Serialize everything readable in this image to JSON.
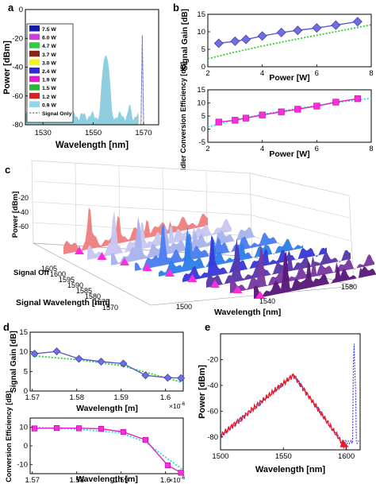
{
  "panels": {
    "a": "a",
    "b": "b",
    "c": "c",
    "d": "d",
    "e": "e"
  },
  "colors": {
    "legend": [
      "#1a1aa8",
      "#d03adf",
      "#2fcc3c",
      "#8a2418",
      "#f4f418",
      "#2b2bd8",
      "#d91fd0",
      "#2ab832",
      "#e02020",
      "#8cd7ea"
    ],
    "blue_marker": "#6f6fe0",
    "magenta_marker": "#ff2bdc",
    "green_dot": "#2bd02b",
    "cyan_dot": "#2adada",
    "red_line": "#e41a2a"
  },
  "chart_data": [
    {
      "id": "a",
      "type": "line",
      "xlabel": "Wavelength [nm]",
      "ylabel": "Power [dBm]",
      "xlim": [
        1523,
        1576
      ],
      "ylim": [
        -80,
        0
      ],
      "xticks": [
        1530,
        1550,
        1570
      ],
      "yticks": [
        -80,
        -60,
        -40,
        -20,
        0
      ],
      "legend": [
        "7.5 W",
        "6.0 W",
        "4.7 W",
        "3.7 W",
        "3.0 W",
        "2.4 W",
        "1.9 W",
        "1.5 W",
        "1.2 W",
        "0.9 W",
        "Signal Only"
      ],
      "signal_peak": {
        "x": 1569.5,
        "y": -18
      },
      "gain_peaks": [
        {
          "x": 1555.0,
          "y": -32
        },
        {
          "x": 1541.0,
          "y": -70
        },
        {
          "x": 1564.5,
          "y": -66
        },
        {
          "x": 1527.0,
          "y": -70
        }
      ]
    },
    {
      "id": "b_top",
      "type": "line",
      "xlabel": "Power [W]",
      "ylabel": "Signal Gain [dB]",
      "xlim": [
        2,
        8
      ],
      "ylim": [
        0,
        15
      ],
      "xticks": [
        2,
        4,
        6,
        8
      ],
      "yticks": [
        0,
        5,
        10,
        15
      ],
      "series": [
        {
          "values_x": [
            2.4,
            3.0,
            3.4,
            4.0,
            4.7,
            5.3,
            6.0,
            6.7,
            7.5
          ],
          "values_y": [
            6.7,
            7.3,
            7.8,
            8.8,
            9.8,
            10.4,
            11.1,
            11.9,
            12.9
          ]
        },
        {
          "values_x": [
            2.0,
            3.0,
            4.0,
            5.0,
            6.0,
            7.0,
            8.0
          ],
          "values_y": [
            2.3,
            4.2,
            5.9,
            7.5,
            9.0,
            10.5,
            12.0
          ]
        }
      ]
    },
    {
      "id": "b_bottom",
      "type": "line",
      "xlabel": "Power [W]",
      "ylabel": "Idler Conversion Efficiency [dB]",
      "xlim": [
        2,
        8
      ],
      "ylim": [
        -5,
        15
      ],
      "xticks": [
        2,
        4,
        6,
        8
      ],
      "yticks": [
        -5,
        0,
        5,
        10,
        15
      ],
      "series": [
        {
          "values_x": [
            2.4,
            3.0,
            3.4,
            4.0,
            4.7,
            5.3,
            6.0,
            6.7,
            7.5
          ],
          "values_y": [
            2.7,
            3.4,
            4.2,
            5.4,
            6.6,
            7.6,
            8.8,
            10.3,
            11.6
          ]
        },
        {
          "values_x": [
            2.0,
            3.0,
            4.0,
            5.0,
            6.0,
            7.0,
            8.0
          ],
          "values_y": [
            0.8,
            3.5,
            5.6,
            7.4,
            9.0,
            10.5,
            11.8
          ]
        }
      ]
    },
    {
      "id": "c",
      "type": "area",
      "xlabel": "Wavelength [nm]",
      "ylabel": "Power [dBm]",
      "zlabel": "Signal Wavelength [nm]",
      "yticks": [
        -20,
        -40,
        -60
      ],
      "xticks": [
        1500,
        1540,
        1580
      ],
      "zticks": [
        1570,
        1575,
        1580,
        1585,
        1590,
        1595,
        1600,
        1605
      ],
      "zextra": "Signal Off",
      "slice_colors": [
        "#f08080",
        "#c7c7f2",
        "#a8b4ee",
        "#4c7ef2",
        "#2f7fe8",
        "#3a3ad8",
        "#5a3aa8",
        "#7a3aa0",
        "#5a1a7a"
      ]
    },
    {
      "id": "d_top",
      "type": "line",
      "xlabel": "Wavelength [m]",
      "ylabel": "Signal Gain [dB]",
      "exponent": "×10",
      "exponent_power": "-6",
      "xlim": [
        1.57e-06,
        1.604e-06
      ],
      "ylim": [
        0,
        15
      ],
      "xticks": [
        "1.57",
        "1.58",
        "1.59",
        "1.6"
      ],
      "yticks": [
        0,
        5,
        10,
        15
      ],
      "series": [
        {
          "values_x": [
            1.5705,
            1.5755,
            1.5805,
            1.5855,
            1.5905,
            1.5955,
            1.6005,
            1.6035
          ],
          "values_y": [
            9.5,
            10.1,
            8.2,
            7.5,
            7.0,
            4.0,
            3.4,
            3.3
          ]
        },
        {
          "values_x": [
            1.57,
            1.58,
            1.59,
            1.6035
          ],
          "values_y": [
            9.0,
            8.0,
            6.5,
            2.3
          ]
        }
      ]
    },
    {
      "id": "d_bottom",
      "type": "line",
      "xlabel": "Wavelength [m]",
      "ylabel": "Idler Conversion Efficiency [dB]",
      "exponent": "×10",
      "exponent_power": "-6",
      "xlim": [
        1.57e-06,
        1.604e-06
      ],
      "ylim": [
        -15,
        15
      ],
      "xticks": [
        "1.57",
        "1.58",
        "1.59",
        "1.6"
      ],
      "yticks": [
        -10,
        0,
        10
      ],
      "series": [
        {
          "values_x": [
            1.5705,
            1.5755,
            1.5805,
            1.5855,
            1.5905,
            1.5955,
            1.6005,
            1.6035
          ],
          "values_y": [
            9.4,
            9.6,
            9.5,
            9.2,
            7.5,
            3.2,
            -10.5,
            -14.5
          ]
        },
        {
          "values_x": [
            1.57,
            1.58,
            1.59,
            1.5955,
            1.6005,
            1.604
          ],
          "values_y": [
            10.0,
            9.0,
            7.0,
            2.0,
            -7.0,
            -13.0
          ]
        }
      ]
    },
    {
      "id": "e",
      "type": "line",
      "xlabel": "Wavelength [nm]",
      "ylabel": "Power [dBm]",
      "xlim": [
        1500,
        1611
      ],
      "ylim": [
        -90,
        0
      ],
      "xticks": [
        1500,
        1550,
        1600
      ],
      "yticks": [
        -20,
        -40,
        -60,
        -80
      ],
      "series": [
        {
          "values_x": [
            1500,
            1505,
            1510,
            1515,
            1520,
            1525,
            1530,
            1535,
            1540,
            1545,
            1550,
            1555,
            1558,
            1560,
            1565,
            1570,
            1575,
            1580,
            1585,
            1590,
            1595,
            1600
          ],
          "values_y": [
            -79,
            -76,
            -73,
            -69,
            -66,
            -61,
            -56,
            -51,
            -46,
            -41,
            -37,
            -33,
            -32,
            -34,
            -38,
            -45,
            -52,
            -59,
            -67,
            -74,
            -82,
            -89
          ]
        },
        {
          "values_x": [
            1500,
            1520,
            1540,
            1558,
            1580,
            1595,
            1602,
            1605,
            1606,
            1607,
            1608,
            1610
          ],
          "values_y": [
            -80,
            -66,
            -46,
            -32,
            -59,
            -82,
            -85,
            -40,
            -8,
            -40,
            -85,
            -85
          ]
        }
      ]
    }
  ]
}
